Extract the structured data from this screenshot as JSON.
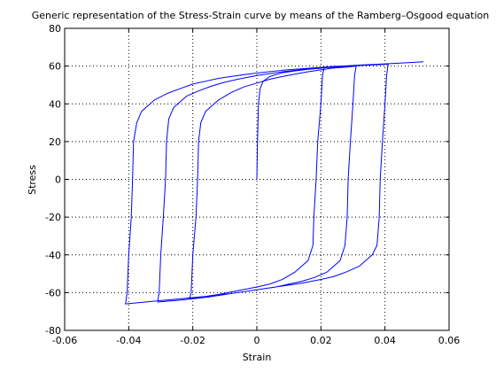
{
  "chart_data": {
    "type": "line",
    "title": "Generic representation of the Stress-Strain curve by means of the Ramberg–Osgood equation",
    "xlabel": "Strain",
    "ylabel": "Stress",
    "xlim": [
      -0.06,
      0.06
    ],
    "ylim": [
      -80,
      80
    ],
    "xticks": [
      -0.06,
      -0.04,
      -0.02,
      0,
      0.02,
      0.04,
      0.06
    ],
    "xtick_labels": [
      "-0.06",
      "-0.04",
      "-0.02",
      "0",
      "0.02",
      "0.04",
      "0.06"
    ],
    "yticks": [
      -80,
      -60,
      -40,
      -20,
      0,
      20,
      40,
      60,
      80
    ],
    "ytick_labels": [
      "-80",
      "-60",
      "-40",
      "-20",
      "0",
      "20",
      "40",
      "60",
      "80"
    ],
    "grid": true,
    "grid_style": "dotted",
    "line_color": "#0000ff",
    "series": [
      {
        "points": [
          [
            0,
            0
          ],
          [
            0.0002,
            20
          ],
          [
            0.0005,
            40
          ],
          [
            0.001,
            48
          ],
          [
            0.002,
            52
          ],
          [
            0.004,
            54.5
          ],
          [
            0.008,
            56.5
          ],
          [
            0.012,
            57.5
          ],
          [
            0.016,
            58.3
          ],
          [
            0.021,
            59
          ],
          [
            0.0205,
            55
          ],
          [
            0.02,
            40
          ],
          [
            0.019,
            20
          ],
          [
            0.0185,
            0
          ],
          [
            0.0178,
            -20
          ],
          [
            0.0175,
            -35
          ],
          [
            0.016,
            -43
          ],
          [
            0.012,
            -49
          ],
          [
            0.008,
            -53
          ],
          [
            0.004,
            -55.5
          ],
          [
            0,
            -57
          ],
          [
            -0.006,
            -59
          ],
          [
            -0.012,
            -61
          ],
          [
            -0.016,
            -62
          ],
          [
            -0.021,
            -63
          ],
          [
            -0.0205,
            -60
          ],
          [
            -0.02,
            -40
          ],
          [
            -0.019,
            -20
          ],
          [
            -0.0185,
            0
          ],
          [
            -0.0182,
            20
          ],
          [
            -0.0175,
            30
          ],
          [
            -0.016,
            36
          ],
          [
            -0.012,
            42
          ],
          [
            -0.008,
            46
          ],
          [
            -0.004,
            49
          ],
          [
            0,
            51
          ],
          [
            0.004,
            53
          ],
          [
            0.008,
            54.5
          ],
          [
            0.012,
            55.8
          ],
          [
            0.016,
            57
          ],
          [
            0.02,
            58
          ],
          [
            0.024,
            59
          ],
          [
            0.028,
            59.5
          ],
          [
            0.031,
            60
          ],
          [
            0.0305,
            55
          ],
          [
            0.03,
            40
          ],
          [
            0.0292,
            20
          ],
          [
            0.0285,
            0
          ],
          [
            0.0282,
            -20
          ],
          [
            0.0275,
            -35
          ],
          [
            0.026,
            -43
          ],
          [
            0.022,
            -49
          ],
          [
            0.018,
            -52
          ],
          [
            0.014,
            -54
          ],
          [
            0.01,
            -55.5
          ],
          [
            0.006,
            -57
          ],
          [
            0,
            -58.5
          ],
          [
            -0.008,
            -60.5
          ],
          [
            -0.016,
            -62.5
          ],
          [
            -0.024,
            -64
          ],
          [
            -0.031,
            -65
          ],
          [
            -0.0305,
            -60
          ],
          [
            -0.03,
            -40
          ],
          [
            -0.0292,
            -20
          ],
          [
            -0.0285,
            0
          ],
          [
            -0.0282,
            20
          ],
          [
            -0.0275,
            32
          ],
          [
            -0.026,
            38
          ],
          [
            -0.022,
            44
          ],
          [
            -0.018,
            47
          ],
          [
            -0.014,
            49.5
          ],
          [
            -0.01,
            51.5
          ],
          [
            -0.006,
            53
          ],
          [
            0,
            55
          ],
          [
            0.008,
            57
          ],
          [
            0.016,
            58.5
          ],
          [
            0.024,
            59.5
          ],
          [
            0.032,
            60.3
          ],
          [
            0.041,
            61
          ],
          [
            0.0405,
            55
          ],
          [
            0.04,
            40
          ],
          [
            0.0392,
            20
          ],
          [
            0.0385,
            0
          ],
          [
            0.0382,
            -20
          ],
          [
            0.0375,
            -35
          ],
          [
            0.036,
            -40
          ],
          [
            0.032,
            -46
          ],
          [
            0.028,
            -49
          ],
          [
            0.024,
            -51.5
          ],
          [
            0.02,
            -53
          ],
          [
            0.014,
            -55
          ],
          [
            0.008,
            -56.5
          ],
          [
            0,
            -58.5
          ],
          [
            -0.008,
            -60.5
          ],
          [
            -0.016,
            -62
          ],
          [
            -0.024,
            -63.3
          ],
          [
            -0.032,
            -64.5
          ],
          [
            -0.041,
            -66
          ],
          [
            -0.0405,
            -60
          ],
          [
            -0.04,
            -40
          ],
          [
            -0.0392,
            -20
          ],
          [
            -0.0388,
            0
          ],
          [
            -0.0385,
            20
          ],
          [
            -0.0375,
            30
          ],
          [
            -0.036,
            36
          ],
          [
            -0.032,
            42
          ],
          [
            -0.028,
            45.5
          ],
          [
            -0.024,
            48
          ],
          [
            -0.02,
            50.5
          ],
          [
            -0.016,
            52
          ],
          [
            -0.012,
            53.5
          ],
          [
            -0.008,
            54.5
          ],
          [
            -0.004,
            55.5
          ],
          [
            0,
            56.3
          ],
          [
            0.008,
            57.8
          ],
          [
            0.016,
            58.8
          ],
          [
            0.024,
            59.8
          ],
          [
            0.032,
            60.5
          ],
          [
            0.04,
            61.2
          ],
          [
            0.046,
            61.7
          ],
          [
            0.052,
            62.3
          ]
        ]
      }
    ]
  }
}
